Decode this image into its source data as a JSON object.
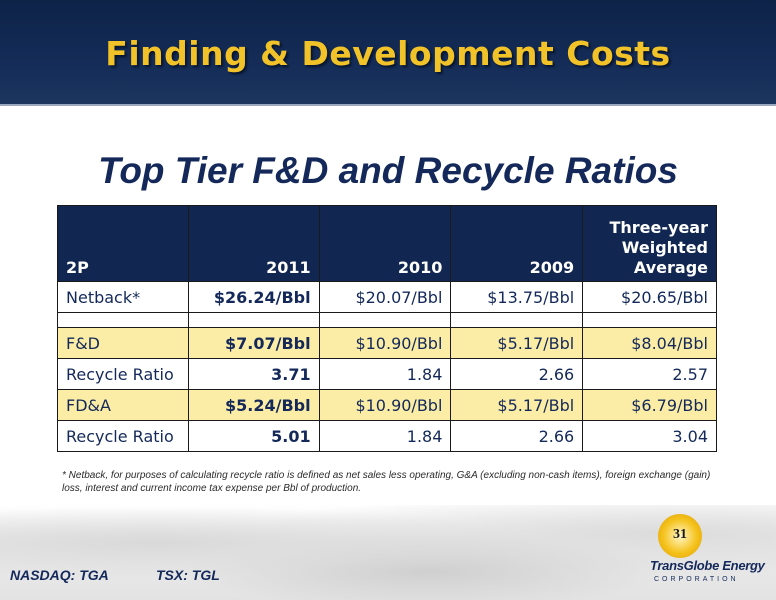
{
  "banner": {
    "title": "Finding & Development Costs"
  },
  "subtitle": "Top Tier F&D and Recycle Ratios",
  "table": {
    "headers": [
      "2P",
      "2011",
      "2010",
      "2009",
      "Three-year Weighted Average"
    ],
    "rows": [
      {
        "label": "Netback*",
        "values": [
          "$26.24/Bbl",
          "$20.07/Bbl",
          "$13.75/Bbl",
          "$20.65/Bbl"
        ]
      },
      {
        "label": "F&D",
        "values": [
          "$7.07/Bbl",
          "$10.90/Bbl",
          "$5.17/Bbl",
          "$8.04/Bbl"
        ]
      },
      {
        "label": "Recycle Ratio",
        "values": [
          "3.71",
          "1.84",
          "2.66",
          "2.57"
        ]
      },
      {
        "label": "FD&A",
        "values": [
          "$5.24/Bbl",
          "$10.90/Bbl",
          "$5.17/Bbl",
          "$6.79/Bbl"
        ]
      },
      {
        "label": "Recycle Ratio",
        "values": [
          "5.01",
          "1.84",
          "2.66",
          "3.04"
        ]
      }
    ]
  },
  "footnote": "* Netback, for purposes of calculating recycle ratio is defined as net sales less operating, G&A (excluding non-cash items), foreign exchange (gain) loss, interest and current income tax expense per Bbl of production.",
  "footer": {
    "ticker_nasdaq": "NASDAQ: TGA",
    "ticker_tsx": "TSX: TGL",
    "page_number": "31",
    "logo_name": "TransGlobe Energy",
    "logo_sub": "CORPORATION"
  },
  "colors": {
    "banner": "#142c57",
    "title_gold": "#f2c229",
    "navy_text": "#14295a",
    "highlight_row": "#fbeda5"
  }
}
